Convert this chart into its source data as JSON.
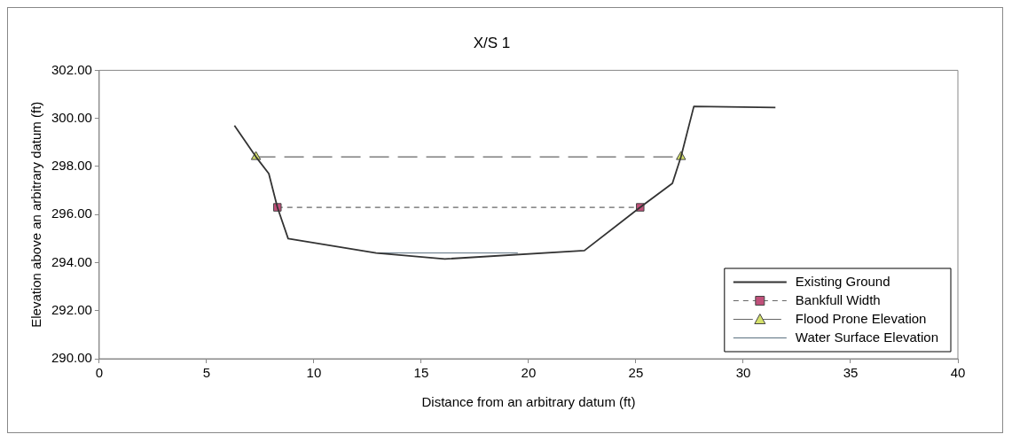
{
  "chart_data": {
    "type": "line",
    "title": "X/S 1",
    "xlabel": "Distance from an arbitrary datum (ft)",
    "ylabel": "Elevation above an arbitrary datum (ft)",
    "xlim": [
      0,
      40
    ],
    "xticks": [
      0,
      5,
      10,
      15,
      20,
      25,
      30,
      35,
      40
    ],
    "ylim": [
      290,
      302
    ],
    "yticks": [
      {
        "value": 290,
        "label": "290.00"
      },
      {
        "value": 292,
        "label": "292.00"
      },
      {
        "value": 294,
        "label": "294.00"
      },
      {
        "value": 296,
        "label": "296.00"
      },
      {
        "value": 298,
        "label": "298.00"
      },
      {
        "value": 300,
        "label": "300.00"
      },
      {
        "value": 302,
        "label": "302.00"
      }
    ],
    "grid": false,
    "legend": "bottom right",
    "series": [
      {
        "name": "Existing Ground",
        "color": "#333333",
        "marker": "none",
        "line_style": "solid",
        "x": [
          6.3,
          7.3,
          7.9,
          8.3,
          8.8,
          12.9,
          16.1,
          22.6,
          25.2,
          26.7,
          27.1,
          27.7,
          31.5
        ],
        "values": [
          299.7,
          298.4,
          297.7,
          296.3,
          295.0,
          294.4,
          294.15,
          294.5,
          296.3,
          297.3,
          298.4,
          300.5,
          300.45
        ]
      },
      {
        "name": "Bankfull Width",
        "color": "#c0507a",
        "marker": "square",
        "line_style": "dashed",
        "x": [
          8.3,
          25.2
        ],
        "values": [
          296.3,
          296.3
        ]
      },
      {
        "name": "Flood Prone Elevation",
        "color": "#d4e06a",
        "marker": "triangle",
        "line_style": "dashed",
        "x": [
          7.3,
          27.1
        ],
        "values": [
          298.4,
          298.4
        ]
      },
      {
        "name": "Water Surface Elevation",
        "color": "#5a7080",
        "marker": "none",
        "line_style": "solid",
        "x": [
          13.0,
          19.5
        ],
        "values": [
          294.4,
          294.4
        ]
      }
    ]
  }
}
